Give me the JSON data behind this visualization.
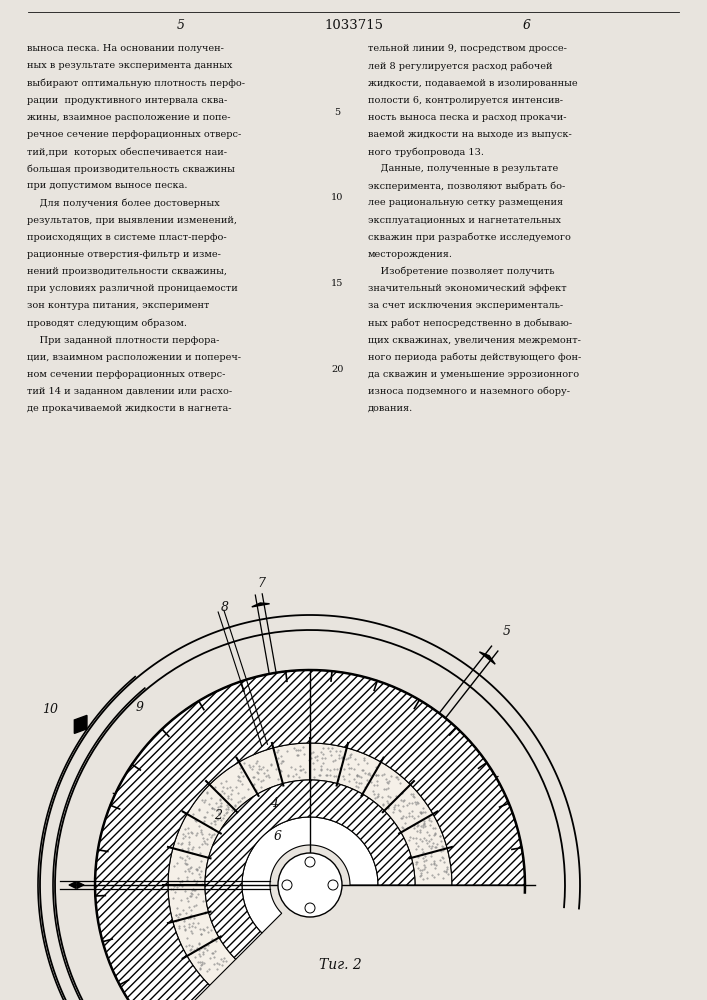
{
  "page_number_left": "5",
  "patent_number": "1033715",
  "page_number_right": "6",
  "background_color": "#e8e4de",
  "text_color": "#111111",
  "fig_label": "Τиг. 2",
  "left_col": [
    "выноса песка. На основании получен-",
    "ных в результате эксперимента данных",
    "выбирают оптимальную плотность перфо-",
    "рации  продуктивного интервала сква-",
    "жины, взаимное расположение и попе-",
    "речное сечение перфорационных отверс-",
    "тий,при  которых обеспечивается наи-",
    "большая производительность скважины",
    "при допустимом выносе песка.",
    "    Для получения более достоверных",
    "результатов, при выявлении изменений,",
    "происходящих в системе пласт-перфо-",
    "рационные отверстия-фильтр и изме-",
    "нений производительности скважины,",
    "при условиях различной проницаемости",
    "зон контура питания, эксперимент",
    "проводят следующим образом.",
    "    При заданной плотности перфора-",
    "ции, взаимном расположении и попереч-",
    "ном сечении перфорационных отверс-",
    "тий 14 и заданном давлении или расхо-",
    "де прокачиваемой жидкости в нагнета-"
  ],
  "right_col": [
    "тельной линии 9, посредством дроссе-",
    "лей 8 регулируется расход рабочей",
    "жидкости, подаваемой в изолированные",
    "полости 6, контролируется интенсив-",
    "ность выноса песка и расход прокачи-",
    "ваемой жидкости на выходе из выпуск-",
    "ного трубопровода 13.",
    "    Данные, полученные в результате",
    "эксперимента, позволяют выбрать бо-",
    "лее рациональную сетку размещения",
    "эксплуатационных и нагнетательных",
    "скважин при разработке исследуемого",
    "месторождения.",
    "    Изобретение позволяет получить",
    "значительный экономический эффект",
    "за счет исключения эксперименталь-",
    "ных работ непосредственно в добываю-",
    "щих скважинах, увеличения межремонт-",
    "ного периода работы действующего фон-",
    "да скважин и уменьшение эррозионного",
    "износа подземного и наземного обору-",
    "дования."
  ]
}
